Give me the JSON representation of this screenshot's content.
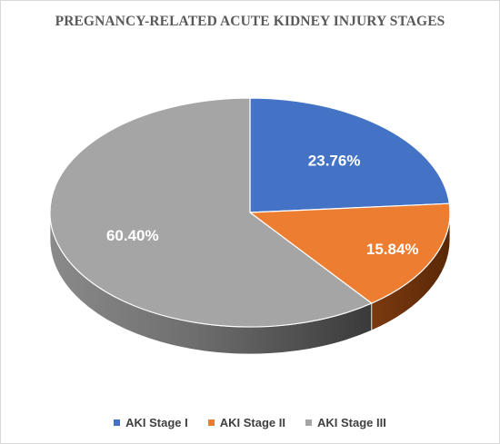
{
  "chart_data": {
    "type": "pie",
    "style": "3d",
    "title": "PREGNANCY-RELATED ACUTE KIDNEY INJURY STAGES",
    "legend_position": "bottom",
    "slices": [
      {
        "name": "AKI Stage I",
        "value": 23.76,
        "label": "23.76%",
        "color": "#4472C4",
        "side_color": "#2F528F"
      },
      {
        "name": "AKI Stage II",
        "value": 15.84,
        "label": "15.84%",
        "color": "#ED7D31",
        "side_color": "#843C0C"
      },
      {
        "name": "AKI Stage III",
        "value": 60.4,
        "label": "60.40%",
        "color": "#A5A5A5",
        "side_color": "#7F7F7F"
      }
    ]
  }
}
